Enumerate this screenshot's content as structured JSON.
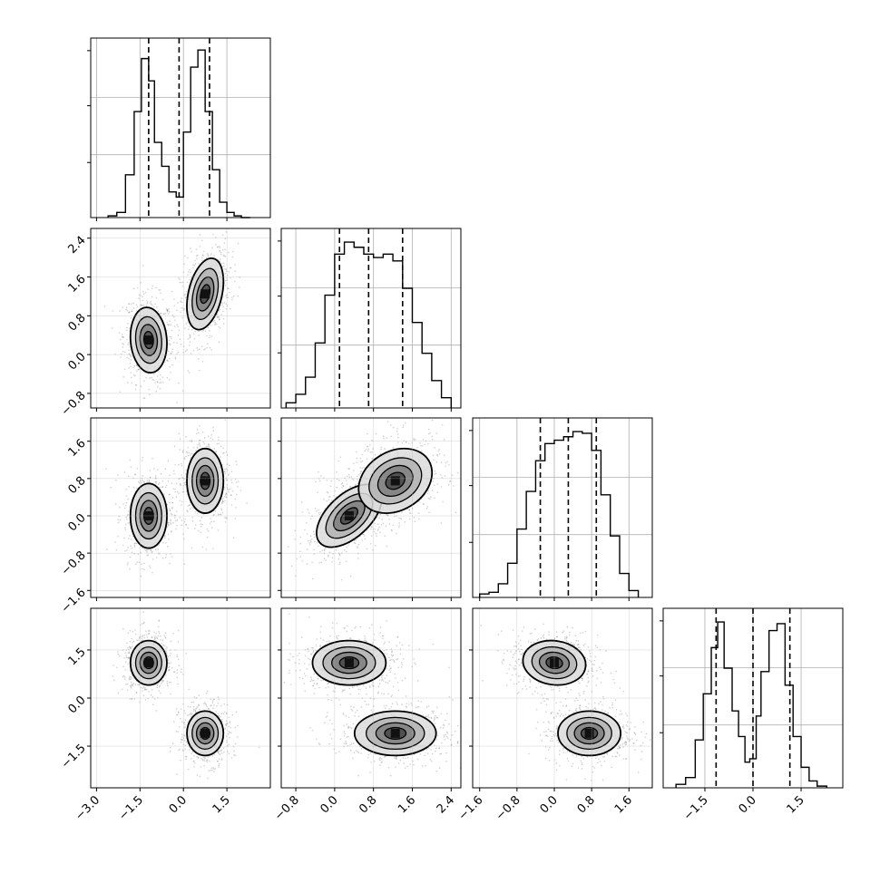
{
  "chart_data": {
    "type": "corner",
    "title": "",
    "n_params": 4,
    "parameter_labels": [
      "",
      "",
      "",
      ""
    ],
    "colors": {
      "ink": "#000000",
      "grid": "#b0b0b0",
      "hist2d": "#000000"
    },
    "grid": true,
    "axes_ranges": [
      [
        -3.2,
        3.0
      ],
      [
        -1.1,
        2.6
      ],
      [
        -1.75,
        2.1
      ],
      [
        -2.8,
        2.8
      ]
    ],
    "ticks": [
      {
        "values": [
          -3.0,
          -1.5,
          0.0,
          1.5
        ],
        "labels": [
          "−3.0",
          "−1.5",
          "0.0",
          "1.5"
        ]
      },
      {
        "values": [
          -0.8,
          0.0,
          0.8,
          1.6,
          2.4
        ],
        "labels": [
          "−0.8",
          "0.0",
          "0.8",
          "1.6",
          "2.4"
        ]
      },
      {
        "values": [
          -1.6,
          -0.8,
          0.0,
          0.8,
          1.6
        ],
        "labels": [
          "−1.6",
          "−0.8",
          "0.0",
          "0.8",
          "1.6"
        ]
      },
      {
        "values": [
          -1.5,
          0.0,
          1.5
        ],
        "labels": [
          "−1.5",
          "0.0",
          "1.5"
        ]
      }
    ],
    "histograms": [
      {
        "param": 0,
        "bins": [
          -2.6,
          -2.3,
          -2.0,
          -1.7,
          -1.45,
          -1.2,
          -1.0,
          -0.75,
          -0.5,
          -0.25,
          0.0,
          0.25,
          0.5,
          0.75,
          1.0,
          1.25,
          1.5,
          1.75,
          2.0,
          2.3
        ],
        "counts": [
          0.01,
          0.03,
          0.25,
          0.62,
          0.93,
          0.8,
          0.44,
          0.3,
          0.15,
          0.12,
          0.5,
          0.88,
          0.98,
          0.62,
          0.28,
          0.09,
          0.03,
          0.01,
          0.0
        ],
        "quantiles": [
          -1.2,
          -0.15,
          0.9
        ]
      },
      {
        "param": 1,
        "bins": [
          -1.0,
          -0.8,
          -0.6,
          -0.4,
          -0.2,
          0.0,
          0.2,
          0.4,
          0.6,
          0.8,
          1.0,
          1.2,
          1.4,
          1.6,
          1.8,
          2.0,
          2.2,
          2.4
        ],
        "counts": [
          0.03,
          0.08,
          0.18,
          0.38,
          0.66,
          0.9,
          0.97,
          0.94,
          0.9,
          0.88,
          0.9,
          0.86,
          0.7,
          0.5,
          0.32,
          0.16,
          0.06
        ],
        "quantiles": [
          0.1,
          0.7,
          1.4
        ]
      },
      {
        "param": 2,
        "bins": [
          -1.6,
          -1.4,
          -1.2,
          -1.0,
          -0.8,
          -0.6,
          -0.4,
          -0.2,
          0.0,
          0.2,
          0.4,
          0.6,
          0.8,
          1.0,
          1.2,
          1.4,
          1.6,
          1.8
        ],
        "counts": [
          0.02,
          0.03,
          0.08,
          0.2,
          0.4,
          0.62,
          0.8,
          0.9,
          0.92,
          0.94,
          0.97,
          0.96,
          0.86,
          0.6,
          0.36,
          0.14,
          0.04
        ],
        "quantiles": [
          -0.3,
          0.3,
          0.9
        ]
      },
      {
        "param": 3,
        "bins": [
          -2.4,
          -2.1,
          -1.8,
          -1.55,
          -1.3,
          -1.1,
          -0.9,
          -0.65,
          -0.45,
          -0.25,
          -0.1,
          0.1,
          0.25,
          0.5,
          0.75,
          1.0,
          1.25,
          1.5,
          1.75,
          2.0,
          2.3
        ],
        "counts": [
          0.02,
          0.06,
          0.28,
          0.55,
          0.82,
          0.97,
          0.7,
          0.45,
          0.3,
          0.15,
          0.17,
          0.42,
          0.68,
          0.92,
          0.96,
          0.6,
          0.3,
          0.12,
          0.04,
          0.01
        ],
        "quantiles": [
          -1.15,
          0.0,
          1.15
        ]
      }
    ],
    "scatter_panels": [
      {
        "x": 0,
        "y": 1,
        "modes": [
          {
            "cx": -1.2,
            "cy": 0.3,
            "sx": 0.3,
            "sy": 0.32,
            "rho": -0.1
          },
          {
            "cx": 0.75,
            "cy": 1.25,
            "sx": 0.3,
            "sy": 0.35,
            "rho": 0.35
          }
        ]
      },
      {
        "x": 0,
        "y": 2,
        "modes": [
          {
            "cx": -1.2,
            "cy": 0.0,
            "sx": 0.3,
            "sy": 0.33,
            "rho": 0.0
          },
          {
            "cx": 0.75,
            "cy": 0.75,
            "sx": 0.3,
            "sy": 0.33,
            "rho": 0.0
          }
        ]
      },
      {
        "x": 0,
        "y": 3,
        "modes": [
          {
            "cx": -1.2,
            "cy": 1.1,
            "sx": 0.3,
            "sy": 0.33,
            "rho": 0.0
          },
          {
            "cx": 0.75,
            "cy": -1.1,
            "sx": 0.3,
            "sy": 0.33,
            "rho": 0.0
          }
        ]
      },
      {
        "x": 1,
        "y": 2,
        "modes": [
          {
            "cx": 0.3,
            "cy": 0.0,
            "sx": 0.32,
            "sy": 0.32,
            "rho": 0.55
          },
          {
            "cx": 1.25,
            "cy": 0.75,
            "sx": 0.36,
            "sy": 0.33,
            "rho": 0.25
          }
        ]
      },
      {
        "x": 1,
        "y": 3,
        "modes": [
          {
            "cx": 0.3,
            "cy": 1.1,
            "sx": 0.36,
            "sy": 0.33,
            "rho": 0.0
          },
          {
            "cx": 1.25,
            "cy": -1.1,
            "sx": 0.4,
            "sy": 0.33,
            "rho": 0.0
          }
        ]
      },
      {
        "x": 2,
        "y": 3,
        "modes": [
          {
            "cx": 0.0,
            "cy": 1.1,
            "sx": 0.32,
            "sy": 0.33,
            "rho": -0.1
          },
          {
            "cx": 0.75,
            "cy": -1.1,
            "sx": 0.32,
            "sy": 0.33,
            "rho": 0.0
          }
        ]
      }
    ]
  }
}
